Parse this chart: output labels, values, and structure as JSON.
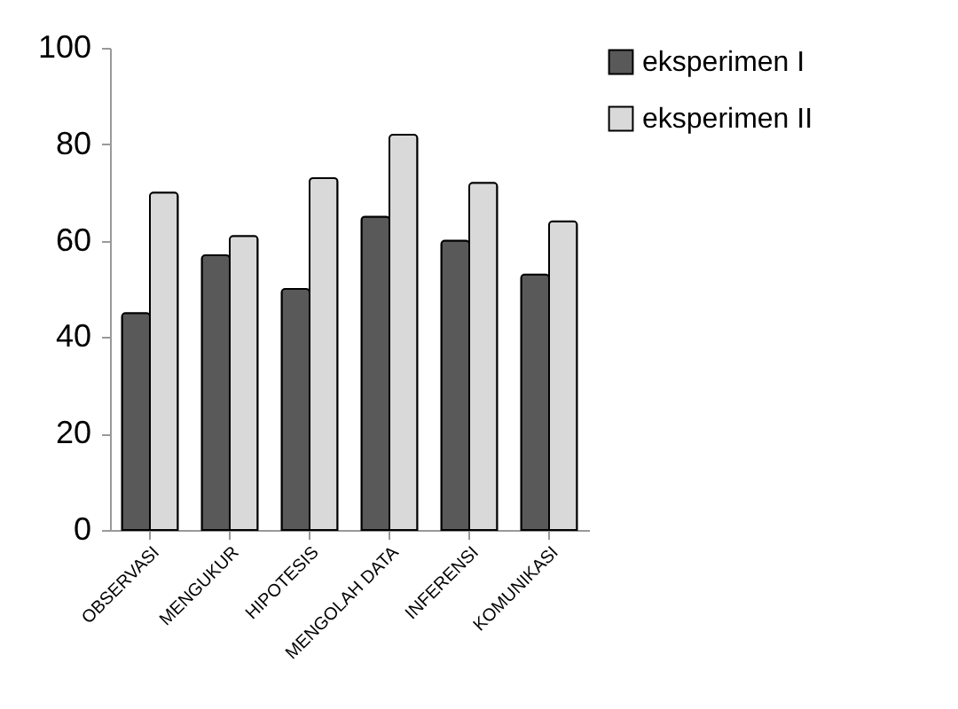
{
  "chart_data": {
    "type": "bar",
    "categories": [
      "OBSERVASI",
      "MENGUKUR",
      "HIPOTESIS",
      "MENGOLAH DATA",
      "INFERENSI",
      "KOMUNIKASI"
    ],
    "series": [
      {
        "name": "eksperimen I",
        "color": "#595959",
        "values": [
          45,
          57,
          50,
          65,
          60,
          53
        ]
      },
      {
        "name": "eksperimen II",
        "color": "#d9d9d9",
        "values": [
          70,
          61,
          73,
          82,
          72,
          64
        ]
      }
    ],
    "ylim": [
      0,
      100
    ],
    "yticks": [
      0,
      20,
      40,
      60,
      80,
      100
    ],
    "grid": false,
    "legend": "right"
  }
}
